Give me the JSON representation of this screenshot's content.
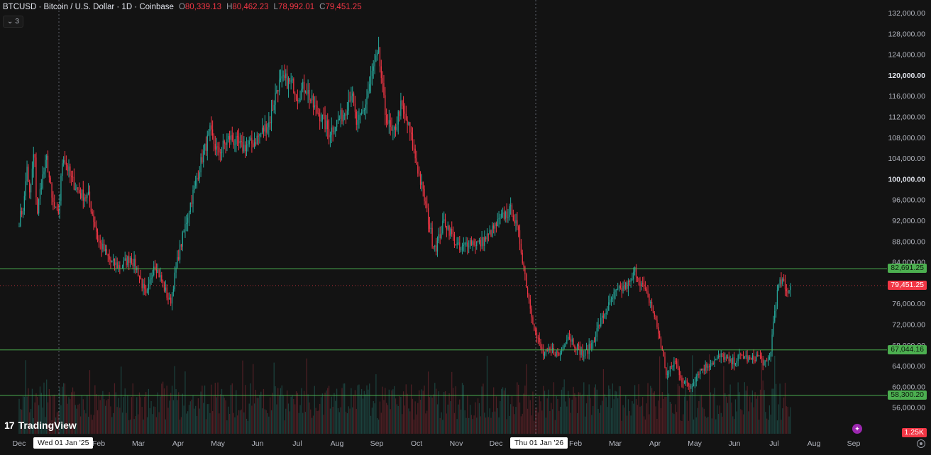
{
  "header": {
    "symbol_line": "BTCUSD · Bitcoin / U.S. Dollar · 1D · Coinbase",
    "ohlc": [
      {
        "key": "O",
        "value": "80,339.13"
      },
      {
        "key": "H",
        "value": "80,462.23"
      },
      {
        "key": "L",
        "value": "78,992.01"
      },
      {
        "key": "C",
        "value": "79,451.25"
      }
    ],
    "indicators_badge": "3",
    "indicators_badge_icon": "chevron-down-icon"
  },
  "branding": {
    "logo_text": "TradingView",
    "logo_mark": "17"
  },
  "chart_data": {
    "type": "candlestick",
    "title": "BTCUSD · Bitcoin / U.S. Dollar · 1D · Coinbase",
    "ylim": [
      52000,
      132000
    ],
    "y_ticks": [
      56000,
      60000,
      64000,
      68000,
      72000,
      76000,
      80000,
      84000,
      88000,
      92000,
      96000,
      100000,
      104000,
      108000,
      112000,
      116000,
      120000,
      124000,
      128000,
      132000
    ],
    "y_tick_labels": [
      "56,000.00",
      "60,000.00",
      "64,000.00",
      "68,000.00",
      "72,000.00",
      "76,000.00",
      "80,000.00",
      "84,000.00",
      "88,000.00",
      "92,000.00",
      "96,000.00",
      "100,000.00",
      "104,000.00",
      "108,000.00",
      "112,000.00",
      "116,000.00",
      "120,000.00",
      "124,000.00",
      "128,000.00",
      "132,000.00"
    ],
    "bold_ticks": [
      "100,000.00",
      "120,000.00"
    ],
    "x_axis_labels": [
      "Dec",
      "Feb",
      "Mar",
      "Apr",
      "May",
      "Jun",
      "Jul",
      "Aug",
      "Sep",
      "Oct",
      "Nov",
      "Dec",
      "Feb",
      "Mar",
      "Apr",
      "May",
      "Jun",
      "Jul",
      "Aug",
      "Sep"
    ],
    "x_axis_label_index": [
      0,
      2,
      3,
      4,
      5,
      6,
      7,
      8,
      9,
      10,
      11,
      12,
      14,
      15,
      16,
      17,
      18,
      19,
      20,
      21
    ],
    "x_axis_start": "2024-12",
    "crosshair_dates": [
      {
        "label": "Wed 01 Jan '25",
        "month_index": 1
      },
      {
        "label": "Thu 01 Jan '26",
        "month_index": 13
      }
    ],
    "horizontal_levels": [
      {
        "value": 82691.25,
        "label": "82,691.25",
        "color": "#4caf50"
      },
      {
        "value": 67044.16,
        "label": "67,044.16",
        "color": "#4caf50"
      },
      {
        "value": 58300.2,
        "label": "58,300.20",
        "color": "#4caf50"
      }
    ],
    "last_price": {
      "value": 79451.25,
      "label": "79,451.25",
      "color": "#f23645"
    },
    "volume_label": "1.25K",
    "up_color": "#26a69a",
    "down_color": "#f23645",
    "close_path": [
      [
        0,
        92000
      ],
      [
        0.12,
        95000
      ],
      [
        0.2,
        103000
      ],
      [
        0.25,
        96000
      ],
      [
        0.3,
        99000
      ],
      [
        0.38,
        106000
      ],
      [
        0.45,
        93000
      ],
      [
        0.55,
        99000
      ],
      [
        0.7,
        104000
      ],
      [
        0.82,
        96000
      ],
      [
        0.95,
        93000
      ],
      [
        1.0,
        94000
      ],
      [
        1.1,
        105000
      ],
      [
        1.3,
        100000
      ],
      [
        1.55,
        97000
      ],
      [
        1.75,
        96500
      ],
      [
        2.0,
        88000
      ],
      [
        2.3,
        84000
      ],
      [
        2.55,
        83000
      ],
      [
        2.8,
        85000
      ],
      [
        3.0,
        82000
      ],
      [
        3.2,
        77000
      ],
      [
        3.4,
        84000
      ],
      [
        3.6,
        80000
      ],
      [
        3.8,
        76000
      ],
      [
        4.0,
        85000
      ],
      [
        4.3,
        95000
      ],
      [
        4.6,
        104000
      ],
      [
        4.8,
        109000
      ],
      [
        5.0,
        105000
      ],
      [
        5.3,
        108000
      ],
      [
        5.6,
        106000
      ],
      [
        5.9,
        107000
      ],
      [
        6.1,
        109000
      ],
      [
        6.3,
        111000
      ],
      [
        6.5,
        118000
      ],
      [
        6.7,
        119000
      ],
      [
        6.9,
        118000
      ],
      [
        7.0,
        116000
      ],
      [
        7.2,
        118000
      ],
      [
        7.4,
        114000
      ],
      [
        7.6,
        112000
      ],
      [
        7.8,
        109000
      ],
      [
        8.0,
        111000
      ],
      [
        8.2,
        113000
      ],
      [
        8.35,
        117000
      ],
      [
        8.5,
        110000
      ],
      [
        8.7,
        114000
      ],
      [
        8.9,
        121000
      ],
      [
        9.05,
        124000
      ],
      [
        9.2,
        113000
      ],
      [
        9.4,
        108000
      ],
      [
        9.6,
        114000
      ],
      [
        9.8,
        110000
      ],
      [
        10.0,
        103000
      ],
      [
        10.2,
        96000
      ],
      [
        10.4,
        88000
      ],
      [
        10.5,
        87000
      ],
      [
        10.7,
        92000
      ],
      [
        10.9,
        89000
      ],
      [
        11.1,
        86000
      ],
      [
        11.3,
        88000
      ],
      [
        11.6,
        87500
      ],
      [
        11.8,
        89000
      ],
      [
        12.0,
        91000
      ],
      [
        12.2,
        93000
      ],
      [
        12.4,
        94000
      ],
      [
        12.6,
        88000
      ],
      [
        12.8,
        78000
      ],
      [
        13.0,
        70000
      ],
      [
        13.2,
        66000
      ],
      [
        13.4,
        67000
      ],
      [
        13.6,
        66000
      ],
      [
        13.8,
        70000
      ],
      [
        14.0,
        68000
      ],
      [
        14.2,
        66000
      ],
      [
        14.4,
        68000
      ],
      [
        14.6,
        72000
      ],
      [
        14.8,
        75000
      ],
      [
        15.0,
        78000
      ],
      [
        15.2,
        79000
      ],
      [
        15.4,
        80000
      ],
      [
        15.5,
        82500
      ],
      [
        15.7,
        79000
      ],
      [
        15.9,
        76000
      ],
      [
        16.1,
        70000
      ],
      [
        16.3,
        62000
      ],
      [
        16.5,
        65000
      ],
      [
        16.7,
        61000
      ],
      [
        16.9,
        60000
      ],
      [
        17.1,
        63000
      ],
      [
        17.3,
        64000
      ],
      [
        17.5,
        65000
      ],
      [
        17.7,
        66000
      ],
      [
        17.9,
        64500
      ],
      [
        18.0,
        65000
      ],
      [
        18.2,
        66000
      ],
      [
        18.4,
        65000
      ],
      [
        18.6,
        66000
      ],
      [
        18.8,
        64000
      ],
      [
        18.9,
        66000
      ],
      [
        19.0,
        74000
      ],
      [
        19.1,
        79000
      ],
      [
        19.2,
        80500
      ],
      [
        19.3,
        78000
      ],
      [
        19.4,
        79451
      ]
    ]
  }
}
